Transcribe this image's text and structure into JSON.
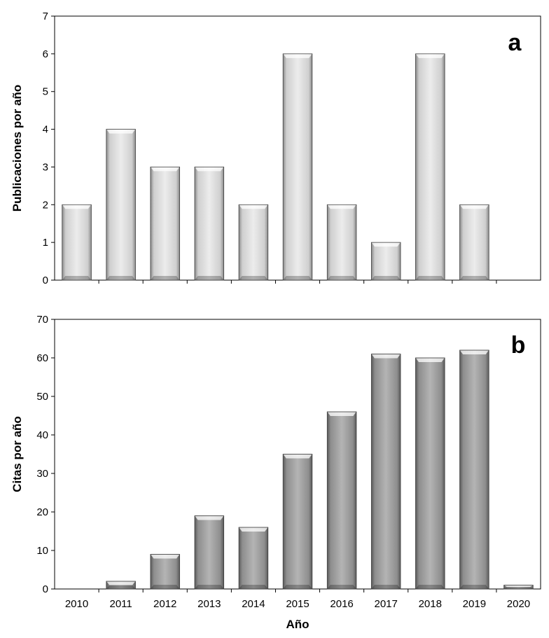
{
  "chart_data": [
    {
      "type": "bar",
      "panel_label": "a",
      "title": "",
      "xlabel": "",
      "ylabel": "Publicaciones por año",
      "categories": [
        "2010",
        "2011",
        "2012",
        "2013",
        "2014",
        "2015",
        "2016",
        "2017",
        "2018",
        "2019",
        "2020"
      ],
      "values": [
        2,
        4,
        3,
        3,
        2,
        6,
        2,
        1,
        6,
        2,
        0
      ],
      "ylim": [
        0,
        7
      ],
      "yticks": [
        0,
        1,
        2,
        3,
        4,
        5,
        6,
        7
      ],
      "show_x_tick_labels": false,
      "grid": false,
      "bar_color": "#dcdcdc"
    },
    {
      "type": "bar",
      "panel_label": "b",
      "title": "",
      "xlabel": "Año",
      "ylabel": "Citas por año",
      "categories": [
        "2010",
        "2011",
        "2012",
        "2013",
        "2014",
        "2015",
        "2016",
        "2017",
        "2018",
        "2019",
        "2020"
      ],
      "values": [
        0,
        2,
        9,
        19,
        16,
        35,
        46,
        61,
        60,
        62,
        1
      ],
      "ylim": [
        0,
        70
      ],
      "yticks": [
        0,
        10,
        20,
        30,
        40,
        50,
        60,
        70
      ],
      "show_x_tick_labels": true,
      "grid": false,
      "bar_color": "#9a9a9a"
    }
  ]
}
